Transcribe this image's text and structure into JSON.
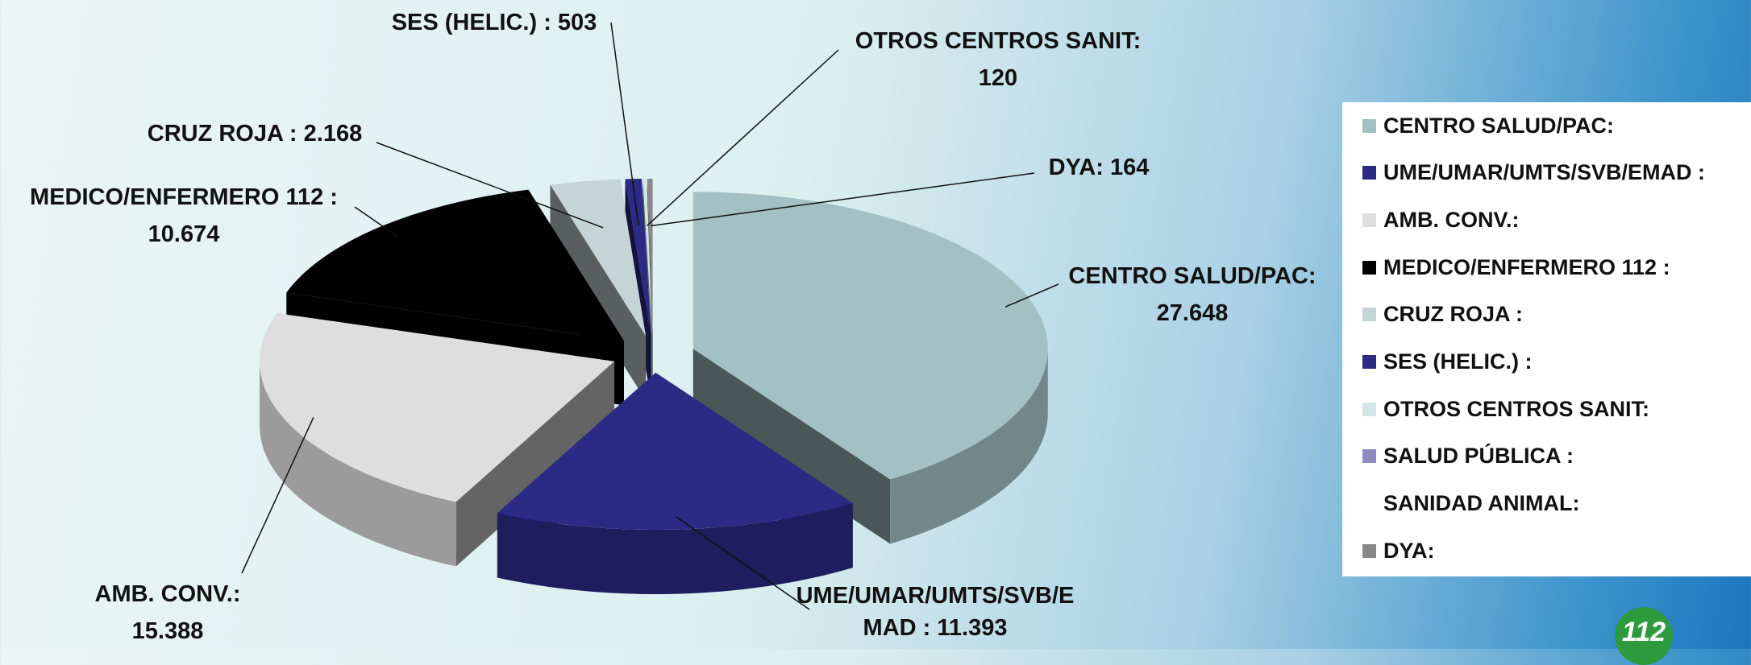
{
  "chart_data": {
    "type": "pie3d",
    "categories": [
      "CENTRO SALUD/PAC:",
      "UME/UMAR/UMTS/SVB/EMAD :",
      "AMB. CONV.:",
      "MEDICO/ENFERMERO 112 :",
      "CRUZ ROJA :",
      "SES (HELIC.) :",
      "OTROS CENTROS SANIT:",
      "SALUD PÚBLICA :",
      "SANIDAD ANIMAL:",
      "DYA:"
    ],
    "values": [
      27648,
      11393,
      15388,
      10674,
      2168,
      503,
      120,
      0,
      0,
      164
    ],
    "value_labels": [
      "27.648",
      "11.393",
      "15.388",
      "10.674",
      "2.168",
      "503",
      "120",
      null,
      null,
      "164"
    ],
    "colors": [
      "#a3c1c4",
      "#2b2a85",
      "#dedede",
      "#000000",
      "#c5d4d4",
      "#2b2a85",
      "#d2e6ea",
      "#8e8cbe",
      null,
      "#888888"
    ],
    "legend": "right",
    "logo": "112"
  }
}
